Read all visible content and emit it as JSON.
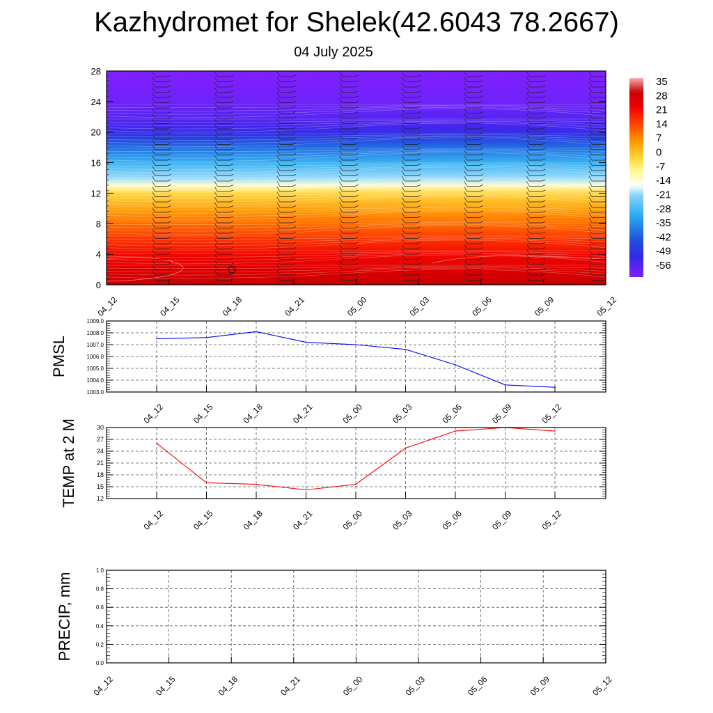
{
  "title": "Kazhydromet for Shelek(42.6043 78.2667)",
  "subtitle": "04 July 2025",
  "colors": {
    "pressure_line": "#0000ff",
    "temperature_line": "#ff0000",
    "precip_line": "#006400"
  },
  "chart_data": [
    {
      "type": "heatmap",
      "name": "temperature-cross-section",
      "x_ticks": [
        "04_12",
        "04_15",
        "04_18",
        "04_21",
        "05_00",
        "05_03",
        "05_06",
        "05_09",
        "05_12"
      ],
      "y_ticks": [
        0,
        4,
        8,
        12,
        16,
        20,
        24,
        28
      ],
      "ylim": [
        0,
        28
      ],
      "colorbar_labels": [
        "35",
        "28",
        "21",
        "14",
        "7",
        "0",
        "-7",
        "-14",
        "-21",
        "-28",
        "-35",
        "-42",
        "-49",
        "-56"
      ],
      "colorbar_range": [
        -60,
        38
      ],
      "temperature_by_height": [
        {
          "y": 0,
          "t": 31
        },
        {
          "y": 2,
          "t": 27
        },
        {
          "y": 4,
          "t": 23
        },
        {
          "y": 6,
          "t": 17
        },
        {
          "y": 8,
          "t": 11
        },
        {
          "y": 10,
          "t": 5
        },
        {
          "y": 12,
          "t": -2
        },
        {
          "y": 13,
          "t": -12
        },
        {
          "y": 14,
          "t": -19
        },
        {
          "y": 16,
          "t": -28
        },
        {
          "y": 18,
          "t": -38
        },
        {
          "y": 19.5,
          "t": -47
        },
        {
          "y": 20.5,
          "t": -52
        },
        {
          "y": 22,
          "t": -55
        },
        {
          "y": 24,
          "t": -58
        },
        {
          "y": 28,
          "t": -60
        }
      ]
    },
    {
      "type": "line",
      "name": "pressure",
      "ylabel": "PMSL",
      "categories": [
        "04_12",
        "04_15",
        "04_18",
        "04_21",
        "05_00",
        "05_03",
        "05_06",
        "05_09",
        "05_12"
      ],
      "ylim": [
        1003.0,
        1009.0
      ],
      "y_ticks": [
        "1003.0",
        "1004.0",
        "1005.0",
        "1006.0",
        "1007.0",
        "1008.0",
        "1009.0"
      ],
      "values": [
        1007.5,
        1007.6,
        1008.1,
        1007.2,
        1007.0,
        1006.6,
        1005.3,
        1003.6,
        1003.4
      ]
    },
    {
      "type": "line",
      "name": "temperature-2m",
      "ylabel": "TEMP at 2 M",
      "categories": [
        "04_12",
        "04_15",
        "04_18",
        "04_21",
        "05_00",
        "05_03",
        "05_06",
        "05_09",
        "05_12"
      ],
      "ylim": [
        12,
        30
      ],
      "y_ticks": [
        "12",
        "15",
        "18",
        "21",
        "24",
        "27",
        "30"
      ],
      "values": [
        26.0,
        16.0,
        15.6,
        14.2,
        15.6,
        24.8,
        29.1,
        30.0,
        29.1
      ]
    },
    {
      "type": "line",
      "name": "precipitation",
      "ylabel": "PRECIP, mm",
      "x_ticks": [
        "04_12",
        "04_15",
        "04_18",
        "04_21",
        "05_00",
        "05_03",
        "05_06",
        "05_09",
        "05_12"
      ],
      "ylim": [
        0.0,
        1.0
      ],
      "y_ticks": [
        "0.0",
        "0.2",
        "0.4",
        "0.6",
        "0.8",
        "1.0"
      ],
      "values": [
        0,
        0,
        0,
        0,
        0,
        0,
        0,
        0,
        0
      ]
    }
  ]
}
